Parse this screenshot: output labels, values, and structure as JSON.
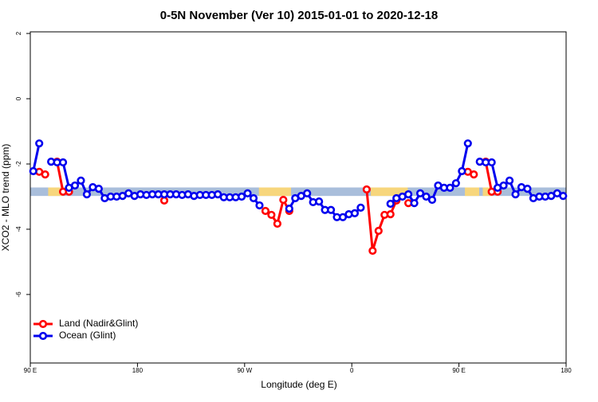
{
  "chart_data": {
    "type": "line",
    "title": "0-5N November (Ver 10)   2015-01-01 to 2020-12-18",
    "x_label": "Longitude (deg E)",
    "y_label": "XCO2 - MLO trend (ppm)",
    "x": [
      92.5,
      97.5,
      102.5,
      107.5,
      112.5,
      117.5,
      122.5,
      127.5,
      132.5,
      137.5,
      142.5,
      147.5,
      152.5,
      157.5,
      162.5,
      167.5,
      172.5,
      177.5,
      182.5,
      187.5,
      192.5,
      197.5,
      202.5,
      207.5,
      212.5,
      217.5,
      222.5,
      227.5,
      232.5,
      237.5,
      242.5,
      247.5,
      252.5,
      257.5,
      262.5,
      267.5,
      272.5,
      277.5,
      282.5,
      287.5,
      292.5,
      297.5,
      302.5,
      307.5,
      312.5,
      317.5,
      322.5,
      327.5,
      332.5,
      337.5,
      342.5,
      347.5,
      352.5,
      357.5,
      362.5,
      367.5,
      372.5,
      377.5,
      382.5,
      387.5,
      392.5,
      397.5,
      402.5,
      407.5,
      412.5,
      417.5,
      422.5,
      427.5,
      432.5,
      437.5,
      442.5,
      447.5,
      452.5,
      457.5,
      462.5,
      467.5,
      472.5,
      477.5,
      482.5,
      487.5,
      492.5,
      497.5,
      502.5,
      507.5,
      512.5,
      517.5,
      522.5,
      527.5,
      532.5,
      537.5
    ],
    "series": [
      {
        "name": "Land (Nadir&Glint)",
        "color": "#ff0000",
        "values": [
          null,
          -2.24,
          -2.32,
          null,
          -1.93,
          -2.85,
          -2.85,
          null,
          null,
          null,
          null,
          null,
          null,
          null,
          null,
          null,
          null,
          null,
          null,
          null,
          null,
          null,
          -3.12,
          null,
          null,
          null,
          null,
          null,
          null,
          null,
          null,
          null,
          null,
          null,
          null,
          null,
          null,
          null,
          null,
          -3.44,
          -3.56,
          -3.83,
          -3.1,
          -3.44,
          null,
          null,
          null,
          null,
          null,
          null,
          null,
          null,
          null,
          null,
          null,
          null,
          -2.78,
          -4.66,
          -4.05,
          -3.56,
          -3.54,
          -3.12,
          null,
          -3.2,
          null,
          null,
          null,
          null,
          null,
          null,
          null,
          null,
          null,
          -2.24,
          -2.32,
          null,
          -1.93,
          -2.85,
          -2.85,
          null,
          null,
          null,
          null,
          null,
          null,
          null,
          null,
          null,
          null,
          null
        ]
      },
      {
        "name": "Ocean (Glint)",
        "color": "#0000ee",
        "values": [
          -2.22,
          -1.37,
          null,
          -1.93,
          -1.95,
          -1.95,
          -2.73,
          -2.66,
          -2.51,
          -2.93,
          -2.71,
          -2.76,
          -3.05,
          -3.0,
          -3.0,
          -2.98,
          -2.9,
          -2.98,
          -2.93,
          -2.95,
          -2.93,
          -2.93,
          -2.93,
          -2.93,
          -2.93,
          -2.95,
          -2.93,
          -2.98,
          -2.95,
          -2.95,
          -2.95,
          -2.93,
          -3.02,
          -3.02,
          -3.02,
          -3.0,
          -2.9,
          -3.05,
          -3.27,
          null,
          null,
          null,
          null,
          -3.37,
          -3.05,
          -2.98,
          -2.9,
          -3.17,
          -3.15,
          -3.41,
          -3.41,
          -3.63,
          -3.63,
          -3.54,
          -3.51,
          -3.34,
          null,
          null,
          null,
          null,
          -3.22,
          -3.05,
          -3.0,
          -2.93,
          -3.2,
          -2.9,
          -3.0,
          -3.1,
          -2.66,
          -2.73,
          -2.73,
          -2.59,
          -2.22,
          -1.37,
          null,
          -1.93,
          -1.95,
          -1.95,
          -2.73,
          -2.66,
          -2.51,
          -2.93,
          -2.71,
          -2.76,
          -3.05,
          -3.0,
          -3.0,
          -2.98,
          -2.9,
          -2.98
        ]
      }
    ],
    "xlim": [
      90,
      540
    ],
    "xticks": [
      {
        "value": 90,
        "label": "90 E"
      },
      {
        "value": 180,
        "label": "180"
      },
      {
        "value": 270,
        "label": "90 W"
      },
      {
        "value": 360,
        "label": "0"
      },
      {
        "value": 450,
        "label": "90 E"
      },
      {
        "value": 540,
        "label": "180"
      }
    ],
    "ylim": [
      -8.1,
      2.05
    ],
    "yticks": [
      2,
      0,
      -2,
      -4,
      -6
    ],
    "legend": "bottom-left",
    "mask_band": {
      "ylim": [
        -2.98,
        -2.72
      ],
      "ocean_color": "#a9bedb",
      "land_color": "#f7d67c",
      "land_spans": [
        [
          105,
          117
        ],
        [
          282,
          309
        ],
        [
          376,
          407
        ],
        [
          455,
          467
        ],
        [
          470,
          478
        ]
      ]
    }
  }
}
